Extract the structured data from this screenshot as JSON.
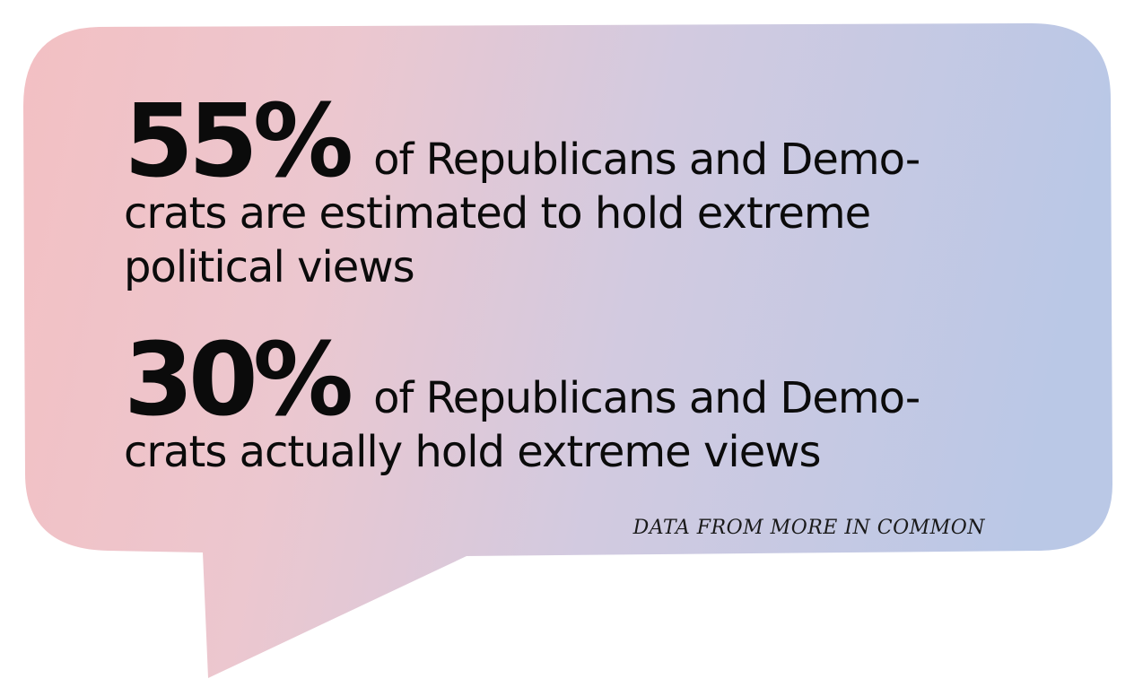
{
  "colors": {
    "gradient_left": "#f3c1c5",
    "gradient_right": "#bcc9e6",
    "text": "#0b0b0b"
  },
  "stat1": {
    "percent": "55%",
    "line1": "of Republicans and Demo-",
    "line2": "crats are estimated to hold extreme",
    "line3": "political views"
  },
  "stat2": {
    "percent": "30%",
    "line1": "of Republicans and Demo-",
    "line2": "crats actually hold extreme views"
  },
  "source": "DATA FROM MORE IN COMMON"
}
